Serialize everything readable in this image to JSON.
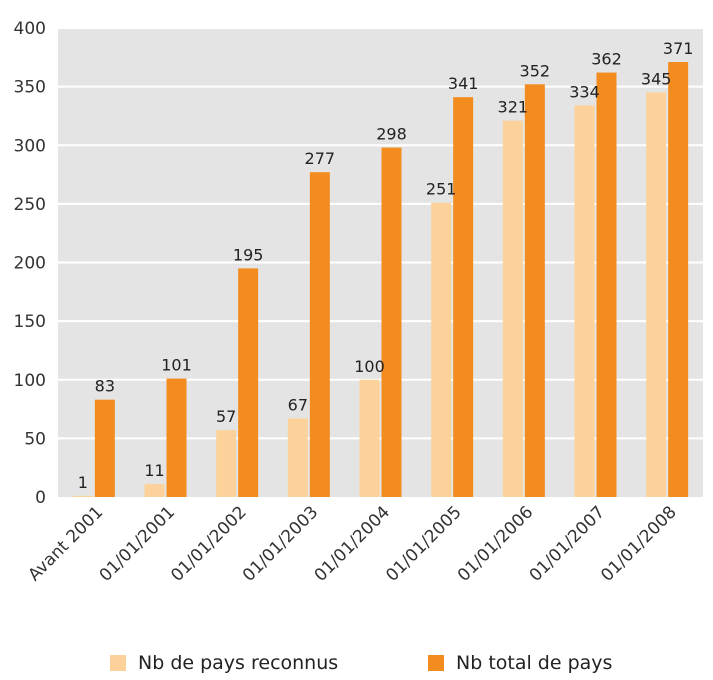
{
  "chart_data": {
    "type": "bar",
    "categories": [
      "Avant 2001",
      "01/01/2001",
      "01/01/2002",
      "01/01/2003",
      "01/01/2004",
      "01/01/2005",
      "01/01/2006",
      "01/01/2007",
      "01/01/2008"
    ],
    "series": [
      {
        "name": "Nb de pays reconnus",
        "values": [
          1,
          11,
          57,
          67,
          100,
          251,
          321,
          334,
          345
        ],
        "color": "#fcd29a"
      },
      {
        "name": "Nb total de pays",
        "values": [
          83,
          101,
          195,
          277,
          298,
          341,
          352,
          362,
          371
        ],
        "color": "#f28c1f"
      }
    ],
    "ylim": [
      0,
      400
    ],
    "yticks": [
      "0",
      "50",
      "100",
      "150",
      "200",
      "250",
      "300",
      "350",
      "400"
    ],
    "grid": true,
    "legend_position": "bottom",
    "plot_background": "#e4e4e4",
    "grid_color": "#ffffff"
  }
}
